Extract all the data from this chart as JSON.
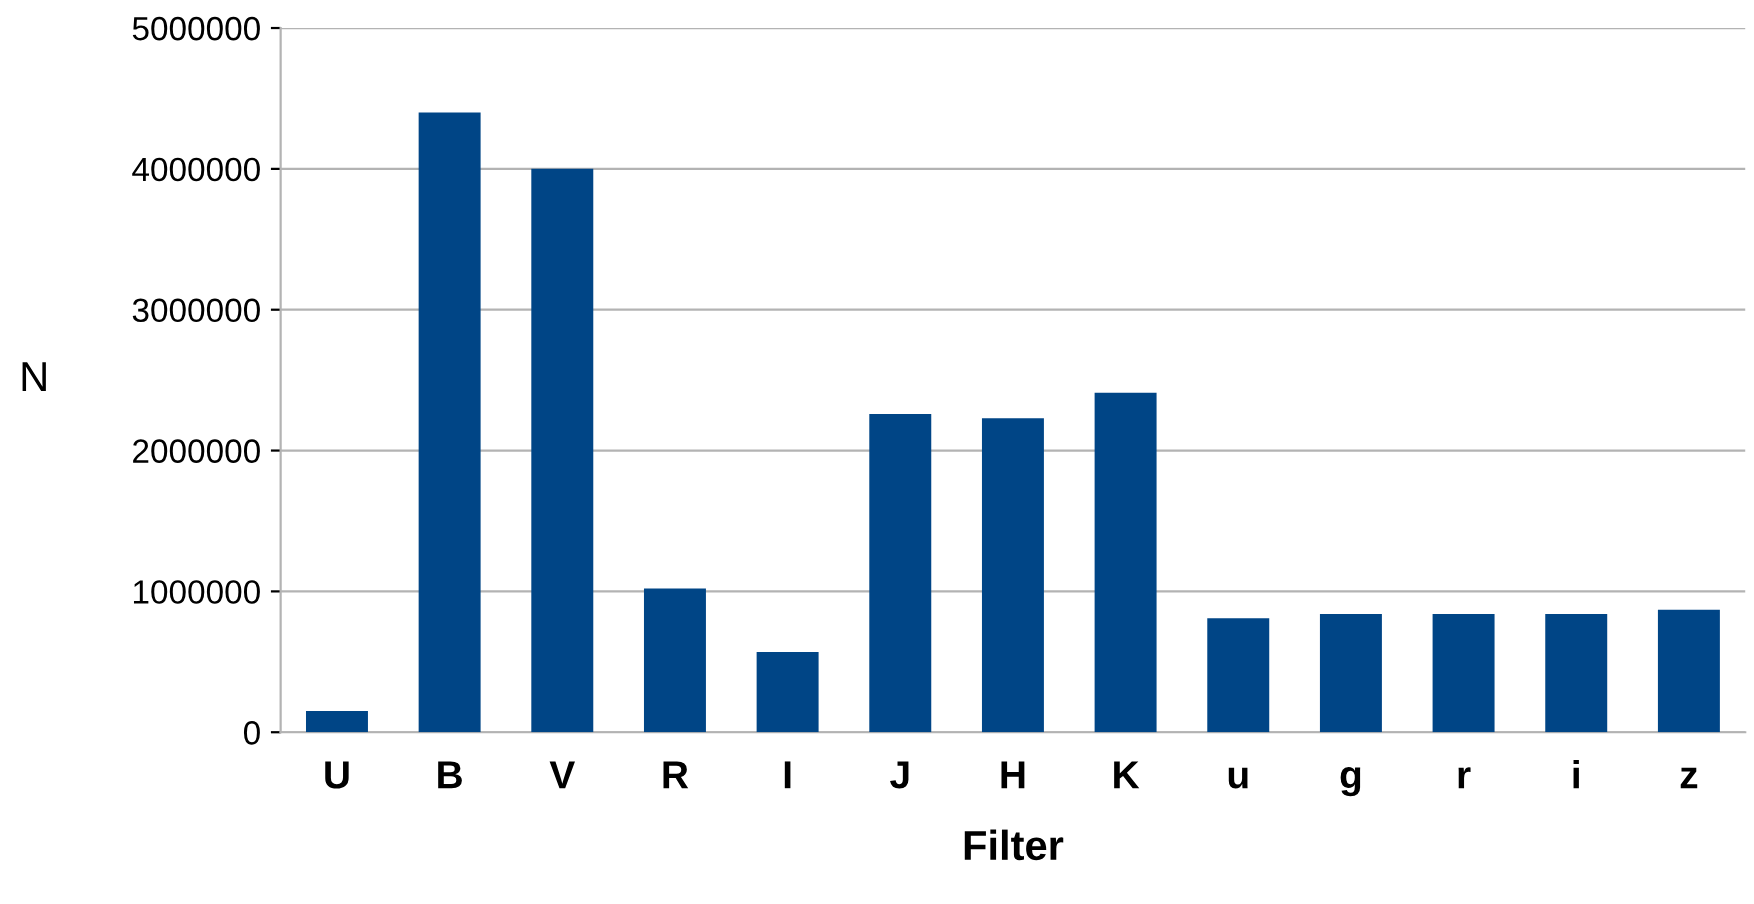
{
  "chart_data": {
    "type": "bar",
    "xlabel": "Filter",
    "ylabel": "N",
    "categories": [
      "U",
      "B",
      "V",
      "R",
      "I",
      "J",
      "H",
      "K",
      "u",
      "g",
      "r",
      "i",
      "z"
    ],
    "values": [
      150000,
      4400000,
      4000000,
      1020000,
      570000,
      2260000,
      2230000,
      2410000,
      810000,
      840000,
      840000,
      840000,
      870000
    ],
    "color": "#004586",
    "ylim": [
      0,
      5000000
    ],
    "yticks": [
      0,
      1000000,
      2000000,
      3000000,
      4000000,
      5000000
    ],
    "grid": "y"
  }
}
